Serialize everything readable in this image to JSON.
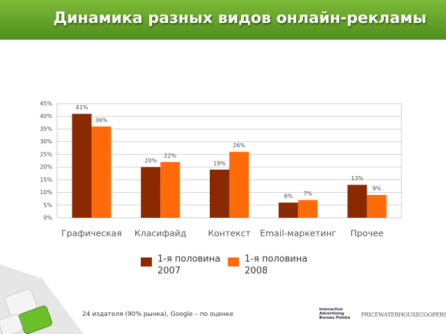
{
  "chart_data": {
    "type": "bar",
    "title": "Динамика разных видов онлайн-рекламы",
    "categories": [
      "Графическая",
      "Класифайд",
      "Контекст",
      "Email-маркетинг",
      "Прочее"
    ],
    "series": [
      {
        "name": "1-я половина 2007",
        "color": "#8b2a02",
        "values": [
          41,
          20,
          19,
          6,
          13
        ],
        "value_labels": [
          "41%",
          "20%",
          "19%",
          "6%",
          "13%"
        ]
      },
      {
        "name": "1-я половина 2008",
        "color": "#ff6a0a",
        "values": [
          36,
          22,
          26,
          7,
          9
        ],
        "value_labels": [
          "36%",
          "22%",
          "26%",
          "7%",
          "9%"
        ]
      }
    ],
    "ylim": [
      0,
      45
    ],
    "yticks": [
      {
        "value": 0,
        "label": "0%"
      },
      {
        "value": 5,
        "label": "5%"
      },
      {
        "value": 10,
        "label": "10%"
      },
      {
        "value": 15,
        "label": "15%"
      },
      {
        "value": 20,
        "label": "20%"
      },
      {
        "value": 25,
        "label": "25%"
      },
      {
        "value": 30,
        "label": "30%"
      },
      {
        "value": 35,
        "label": "35%"
      },
      {
        "value": 40,
        "label": "40%"
      },
      {
        "value": 45,
        "label": "45%"
      }
    ],
    "grid": true
  },
  "footer": {
    "note": "24 издателя (90% рынка), Google – по оценке",
    "logos": [
      "Interactive Advertising Bureau Polska",
      "PRICEWATERHOUSECOOPERS"
    ]
  }
}
